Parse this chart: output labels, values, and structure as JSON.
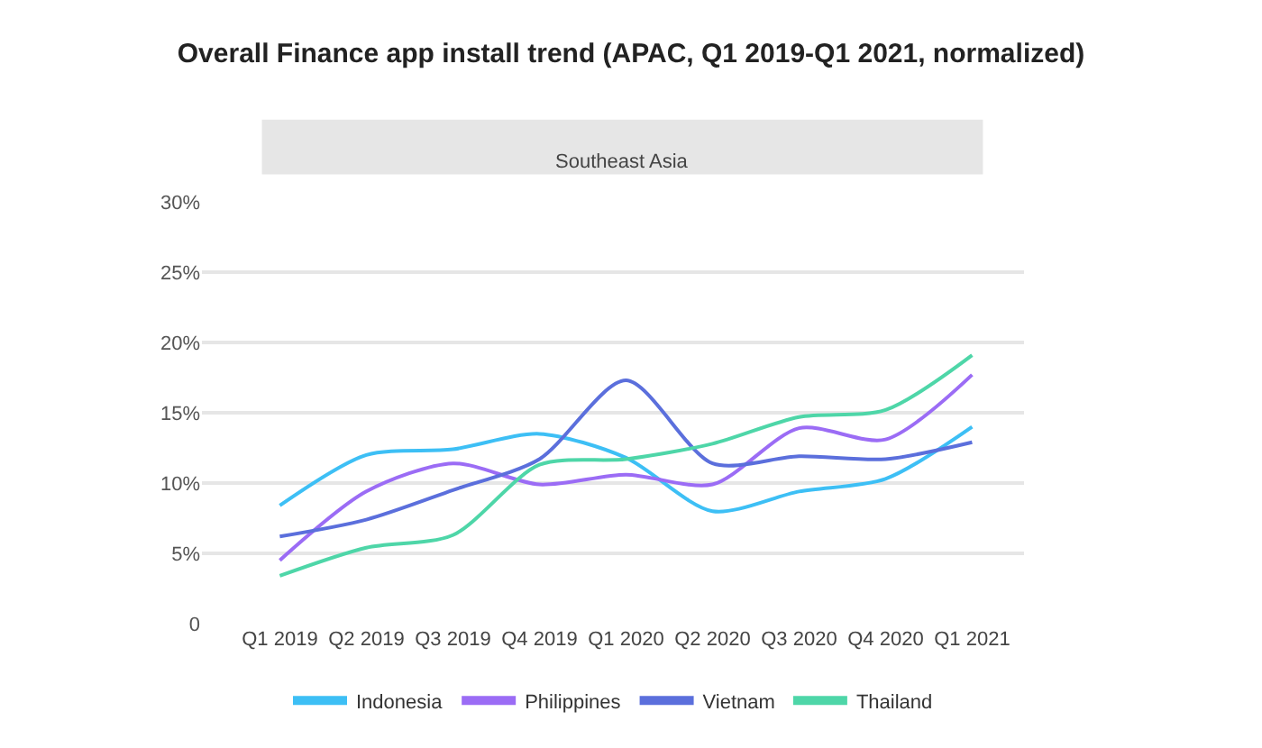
{
  "chart_data": {
    "type": "line",
    "title": "Overall Finance app install trend (APAC, Q1 2019-Q1 2021, normalized)",
    "subtitle": "Southeast Asia",
    "categories": [
      "Q1 2019",
      "Q2 2019",
      "Q3 2019",
      "Q4 2019",
      "Q1 2020",
      "Q2 2020",
      "Q3 2020",
      "Q4 2020",
      "Q1 2021"
    ],
    "series": [
      {
        "name": "Indonesia",
        "color": "#3dbff5",
        "values": [
          8.4,
          12.0,
          12.4,
          13.5,
          11.8,
          8.0,
          9.4,
          10.3,
          14.0
        ]
      },
      {
        "name": "Philippines",
        "color": "#9b6cf5",
        "values": [
          4.5,
          9.4,
          11.4,
          9.9,
          10.6,
          9.9,
          13.9,
          13.1,
          17.7
        ]
      },
      {
        "name": "Vietnam",
        "color": "#5b6fdc",
        "values": [
          6.2,
          7.4,
          9.5,
          11.7,
          17.3,
          11.4,
          11.9,
          11.7,
          12.9
        ]
      },
      {
        "name": "Thailand",
        "color": "#4ed6a8",
        "values": [
          3.4,
          5.4,
          6.3,
          11.3,
          11.7,
          12.8,
          14.7,
          15.2,
          19.1
        ]
      }
    ],
    "ylim": [
      0,
      30
    ],
    "yticks": [
      0,
      {
        "value": 5,
        "label": "5%"
      },
      {
        "value": 10,
        "label": "10%"
      },
      {
        "value": 15,
        "label": "15%"
      },
      {
        "value": 20,
        "label": "20%"
      },
      {
        "value": 25,
        "label": "25%"
      },
      {
        "value": 30,
        "label": "30%"
      }
    ],
    "grid": "y",
    "legend": "bottom",
    "marker": "none",
    "line_style": "solid"
  }
}
